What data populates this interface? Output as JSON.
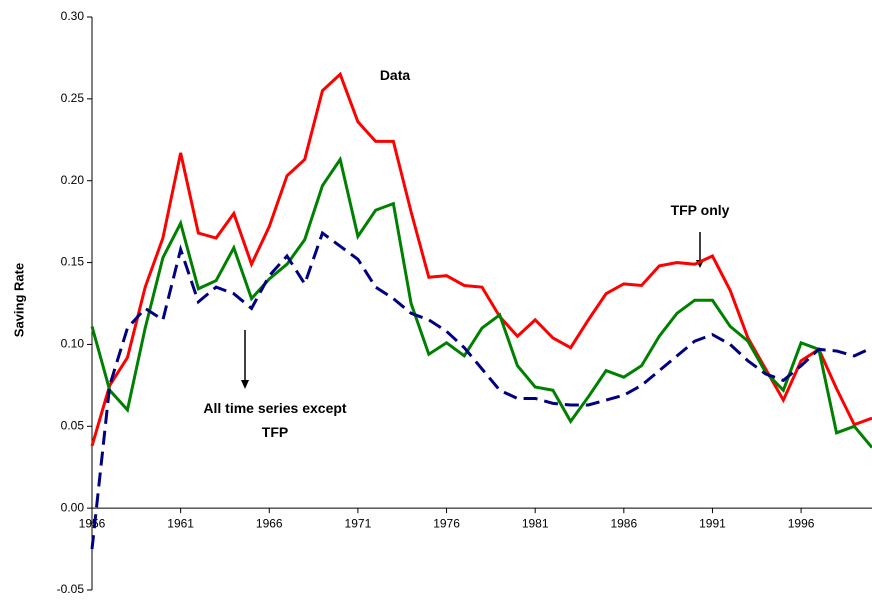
{
  "chart_data": {
    "type": "line",
    "y_label": "Saving Rate",
    "x": [
      1956,
      1957,
      1958,
      1959,
      1960,
      1961,
      1962,
      1963,
      1964,
      1965,
      1966,
      1967,
      1968,
      1969,
      1970,
      1971,
      1972,
      1973,
      1974,
      1975,
      1976,
      1977,
      1978,
      1979,
      1980,
      1981,
      1982,
      1983,
      1984,
      1985,
      1986,
      1987,
      1988,
      1989,
      1990,
      1991,
      1992,
      1993,
      1994,
      1995,
      1996,
      1997,
      1998,
      1999,
      2000
    ],
    "series": [
      {
        "name": "Data",
        "color": "#ff0000",
        "dashed": false,
        "values": [
          0.038,
          0.075,
          0.092,
          0.135,
          0.165,
          0.217,
          0.168,
          0.165,
          0.18,
          0.149,
          0.172,
          0.203,
          0.213,
          0.255,
          0.265,
          0.236,
          0.224,
          0.224,
          0.181,
          0.141,
          0.142,
          0.136,
          0.135,
          0.117,
          0.105,
          0.115,
          0.104,
          0.098,
          0.115,
          0.131,
          0.137,
          0.136,
          0.148,
          0.15,
          0.149,
          0.154,
          0.133,
          0.104,
          0.085,
          0.066,
          0.09,
          0.097,
          0.073,
          0.051,
          0.055
        ]
      },
      {
        "name": "TFP only",
        "color": "#008000",
        "dashed": false,
        "values": [
          0.111,
          0.072,
          0.06,
          0.11,
          0.153,
          0.174,
          0.134,
          0.139,
          0.159,
          0.128,
          0.14,
          0.149,
          0.164,
          0.197,
          0.213,
          0.166,
          0.182,
          0.186,
          0.125,
          0.094,
          0.101,
          0.093,
          0.11,
          0.118,
          0.087,
          0.074,
          0.072,
          0.053,
          0.068,
          0.084,
          0.08,
          0.087,
          0.105,
          0.119,
          0.127,
          0.127,
          0.111,
          0.102,
          0.083,
          0.072,
          0.101,
          0.097,
          0.046,
          0.05,
          0.037
        ]
      },
      {
        "name": "All time series except TFP",
        "color": "#000080",
        "dashed": true,
        "values": [
          -0.025,
          0.075,
          0.11,
          0.122,
          0.115,
          0.158,
          0.126,
          0.135,
          0.131,
          0.122,
          0.142,
          0.154,
          0.137,
          0.168,
          0.16,
          0.152,
          0.135,
          0.128,
          0.119,
          0.115,
          0.108,
          0.098,
          0.085,
          0.072,
          0.067,
          0.067,
          0.064,
          0.063,
          0.063,
          0.066,
          0.069,
          0.075,
          0.084,
          0.093,
          0.102,
          0.106,
          0.1,
          0.09,
          0.082,
          0.078,
          0.087,
          0.097,
          0.096,
          0.093,
          0.098
        ]
      }
    ],
    "xlim": [
      1956,
      2000
    ],
    "xticks": [
      1956,
      1961,
      1966,
      1971,
      1976,
      1981,
      1986,
      1991,
      1996
    ],
    "ylim": [
      -0.05,
      0.3
    ],
    "yticks": [
      {
        "value": 0.3,
        "label": "0.30"
      },
      0.25,
      {
        "value": 0.2,
        "label": "0.20"
      },
      0.15,
      {
        "value": 0.1,
        "label": "0.10"
      },
      0.05,
      {
        "value": 0,
        "label": "0.00"
      },
      -0.05
    ],
    "grid": false
  }
}
